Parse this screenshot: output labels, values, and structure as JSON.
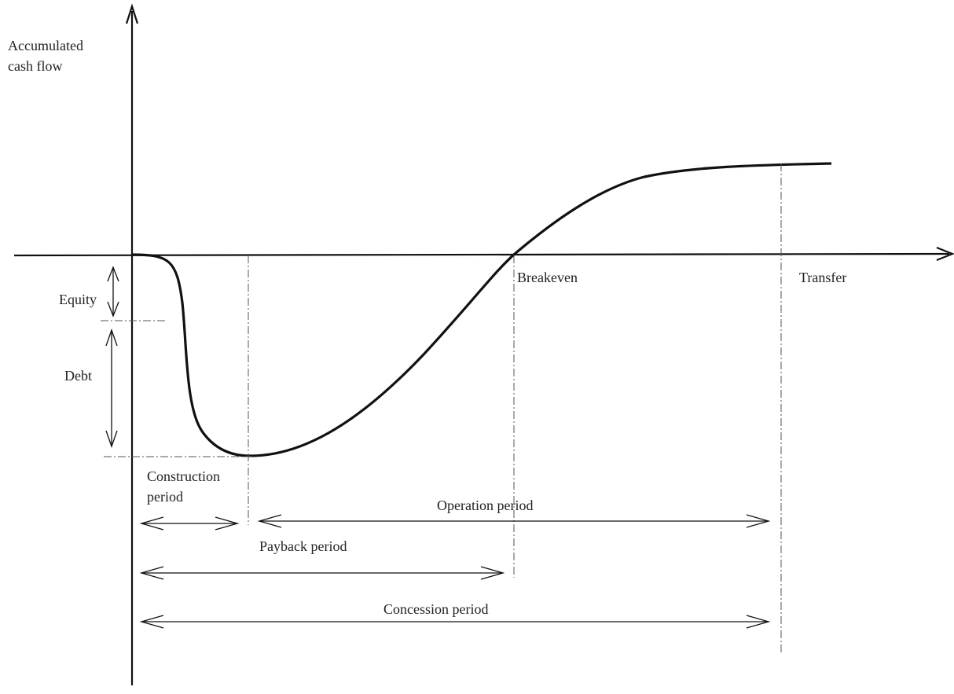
{
  "labels": {
    "y_axis_line1": "Accumulated",
    "y_axis_line2": "cash flow",
    "breakeven": "Breakeven",
    "transfer": "Transfer",
    "equity": "Equity",
    "debt": "Debt",
    "construction_line1": "Construction",
    "construction_line2": "period",
    "operation": "Operation period",
    "payback": "Payback period",
    "concession": "Concession period"
  },
  "colors": {
    "ink": "#111111",
    "dashed": "#555555",
    "background": "#ffffff"
  }
}
